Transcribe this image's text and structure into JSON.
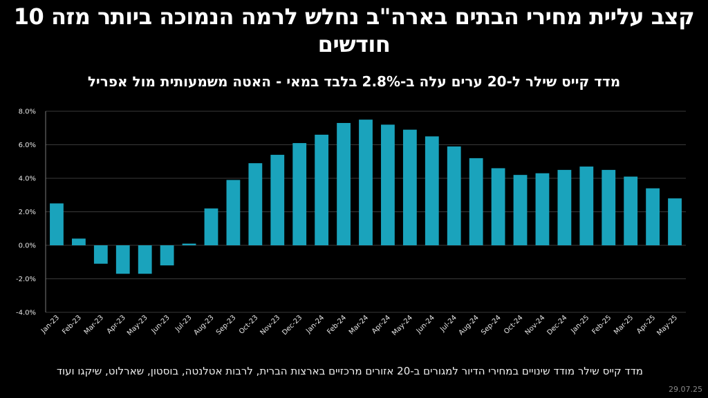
{
  "header": {
    "title": "קצב עליית מחירי הבתים בארה\"ב נחלש לרמה הנמוכה ביותר מזה 10 חודשים",
    "subtitle": "מדד קייס שילר ל-20 ערים עלה ב-2.8% בלבד במאי - האטה משמעותית מול אפריל"
  },
  "footer": {
    "note": "מדד קייס שילר מודד שינויים במחירי הדיור למגורים ב-20 אזורים מרכזיים בארצות הברית, לרבות אטלנטה, בוסטון, שארלוט, שיקגו ועוד",
    "date": "29.07.25"
  },
  "chart_data": {
    "type": "bar",
    "categories": [
      "Jan-23",
      "Feb-23",
      "Mar-23",
      "Apr-23",
      "May-23",
      "Jun-23",
      "Jul-23",
      "Aug-23",
      "Sep-23",
      "Oct-23",
      "Nov-23",
      "Dec-23",
      "Jan-24",
      "Feb-24",
      "Mar-24",
      "Apr-24",
      "May-24",
      "Jun-24",
      "Jul-24",
      "Aug-24",
      "Sep-24",
      "Oct-24",
      "Nov-24",
      "Dec-24",
      "Jan-25",
      "Feb-25",
      "Mar-25",
      "Apr-25",
      "May-25"
    ],
    "values": [
      2.5,
      0.4,
      -1.1,
      -1.7,
      -1.7,
      -1.2,
      0.1,
      2.2,
      3.9,
      4.9,
      5.4,
      6.1,
      6.6,
      7.3,
      7.5,
      7.2,
      6.9,
      6.5,
      5.9,
      5.2,
      4.6,
      4.2,
      4.3,
      4.5,
      4.7,
      4.5,
      4.1,
      3.4,
      2.8
    ],
    "y_ticks": [
      "-4.0%",
      "-2.0%",
      "0.0%",
      "2.0%",
      "4.0%",
      "6.0%",
      "8.0%"
    ],
    "ylim": [
      -4,
      8
    ],
    "grid": true,
    "bar_color": "#1aa3bc",
    "grid_color": "#3a3a3a",
    "axis_color": "#7a7a7a"
  }
}
